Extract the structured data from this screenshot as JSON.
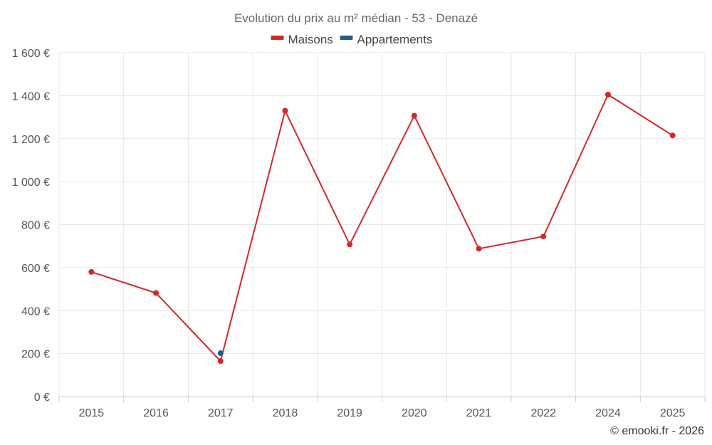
{
  "chart_data": {
    "type": "line",
    "title": "Evolution du prix au m² médian - 53 - Denazé",
    "categories": [
      "2015",
      "2016",
      "2017",
      "2018",
      "2019",
      "2020",
      "2021",
      "2022",
      "2024",
      "2025"
    ],
    "series": [
      {
        "name": "Maisons",
        "color": "#d62728",
        "values": [
          580,
          482,
          165,
          1330,
          708,
          1307,
          688,
          745,
          1405,
          1215
        ]
      },
      {
        "name": "Appartements",
        "color": "#1f5f8b",
        "values": [
          null,
          null,
          202,
          null,
          null,
          null,
          null,
          null,
          null,
          null
        ]
      }
    ],
    "ylim": [
      0,
      1600
    ],
    "yticks": [
      0,
      200,
      400,
      600,
      800,
      1000,
      1200,
      1400,
      1600
    ],
    "ytick_labels": [
      "0 €",
      "200 €",
      "400 €",
      "600 €",
      "800 €",
      "1 000 €",
      "1 200 €",
      "1 400 €",
      "1 600 €"
    ],
    "xlabel": "",
    "ylabel": "",
    "grid": true,
    "legend_position": "top-center"
  },
  "credit": "© emooki.fr - 2026"
}
